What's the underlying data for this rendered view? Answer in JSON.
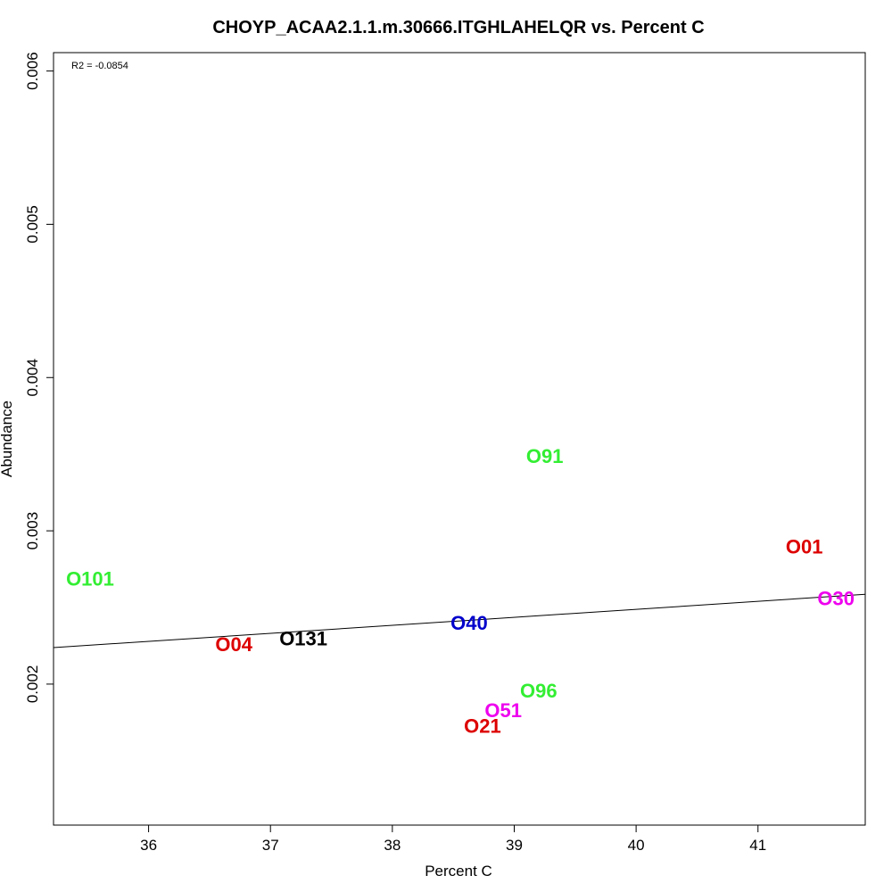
{
  "chart_data": {
    "type": "scatter",
    "title": "CHOYP_ACAA2.1.1.m.30666.ITGHLAHELQR vs. Percent C",
    "xlabel": "Percent C",
    "ylabel": "Abundance",
    "annotation": "R2 = -0.0854",
    "xlim": [
      35.22,
      41.88
    ],
    "ylim": [
      0.00108,
      0.00612
    ],
    "xticks": [
      36,
      37,
      38,
      39,
      40,
      41
    ],
    "yticks": [
      0.002,
      0.003,
      0.004,
      0.005,
      0.006
    ],
    "xtick_labels": [
      "36",
      "37",
      "38",
      "39",
      "40",
      "41"
    ],
    "ytick_labels": [
      "0.002",
      "0.003",
      "0.004",
      "0.005",
      "0.006"
    ],
    "grid": false,
    "points": [
      {
        "label": "O91",
        "x": 39.25,
        "y": 0.00349,
        "color": "#33ee33"
      },
      {
        "label": "O01",
        "x": 41.38,
        "y": 0.0029,
        "color": "#dd0000"
      },
      {
        "label": "O101",
        "x": 35.52,
        "y": 0.00269,
        "color": "#33ee33"
      },
      {
        "label": "O30",
        "x": 41.64,
        "y": 0.00256,
        "color": "#ee00ee"
      },
      {
        "label": "O40",
        "x": 38.63,
        "y": 0.0024,
        "color": "#0000cc"
      },
      {
        "label": "O131",
        "x": 37.27,
        "y": 0.0023,
        "color": "#000000"
      },
      {
        "label": "O04",
        "x": 36.7,
        "y": 0.00226,
        "color": "#dd0000"
      },
      {
        "label": "O96",
        "x": 39.2,
        "y": 0.00196,
        "color": "#33ee33"
      },
      {
        "label": "O51",
        "x": 38.91,
        "y": 0.00183,
        "color": "#ee00ee"
      },
      {
        "label": "O21",
        "x": 38.74,
        "y": 0.00173,
        "color": "#dd0000"
      }
    ],
    "fit_line": {
      "x": [
        35.22,
        41.88
      ],
      "y": [
        0.002238,
        0.002586
      ]
    }
  }
}
